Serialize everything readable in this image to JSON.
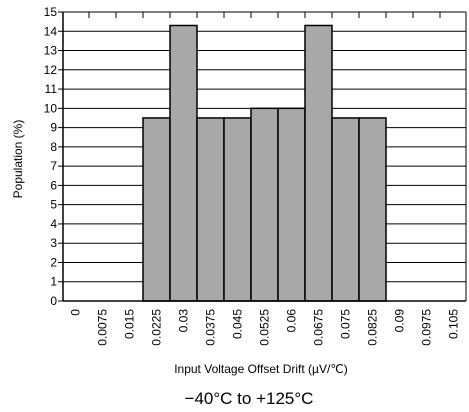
{
  "chart_data": {
    "type": "bar",
    "title": "",
    "subtitle": "−40°C to +125°C",
    "xlabel": "Input Voltage Offset Drift (µV/℃)",
    "ylabel": "Population (%)",
    "categories": [
      "0",
      "0.0075",
      "0.015",
      "0.0225",
      "0.03",
      "0.0375",
      "0.045",
      "0.0525",
      "0.06",
      "0.0675",
      "0.075",
      "0.0825",
      "0.09",
      "0.0975",
      "0.105"
    ],
    "values": [
      0,
      0,
      0,
      9.5,
      14.3,
      9.5,
      9.5,
      10,
      10,
      14.3,
      9.5,
      9.5,
      0,
      0,
      0
    ],
    "ylim": [
      0,
      15
    ],
    "yticks": [
      0,
      1,
      2,
      3,
      4,
      5,
      6,
      7,
      8,
      9,
      10,
      11,
      12,
      13,
      14,
      15
    ],
    "grid": true,
    "colors": {
      "bar": "#a8a8a8",
      "edge": "#000000",
      "grid": "#000000"
    }
  }
}
